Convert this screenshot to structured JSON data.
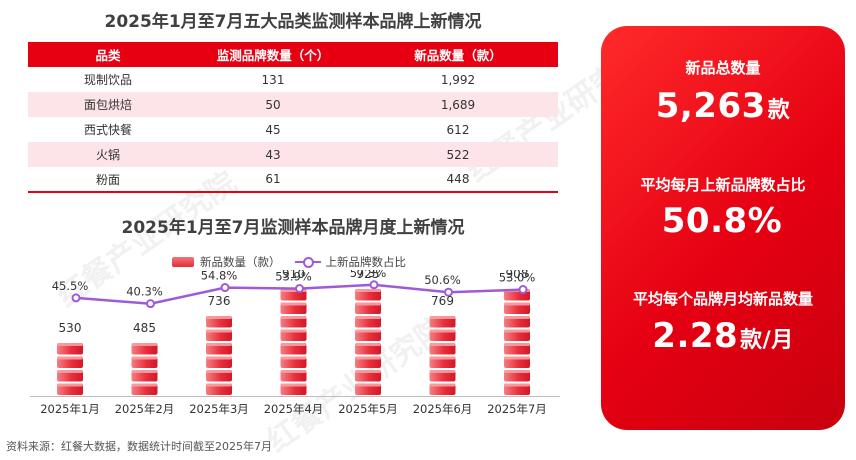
{
  "table_title": "2025年1月至7月五大品类监测样本品牌上新情况",
  "table": {
    "headers": [
      "品类",
      "监测品牌数量（个）",
      "新品数量（款）"
    ],
    "rows": [
      [
        "现制饮品",
        "131",
        "1,992"
      ],
      [
        "面包烘焙",
        "50",
        "1,689"
      ],
      [
        "西式快餐",
        "45",
        "612"
      ],
      [
        "火锅",
        "43",
        "522"
      ],
      [
        "粉面",
        "61",
        "448"
      ]
    ]
  },
  "chart_title": "2025年1月至7月监测样本品牌月度上新情况",
  "chart_data": {
    "type": "bar",
    "categories": [
      "2025年1月",
      "2025年2月",
      "2025年3月",
      "2025年4月",
      "2025年5月",
      "2025年6月",
      "2025年7月"
    ],
    "series": [
      {
        "name": "新品数量（款）",
        "type": "bar",
        "values": [
          530,
          485,
          736,
          910,
          925,
          769,
          908
        ],
        "value_labels": [
          "530",
          "485",
          "736",
          "910",
          "925",
          "769",
          "908"
        ],
        "color": "#e8303c"
      },
      {
        "name": "上新品牌数占比",
        "type": "line",
        "values": [
          45.5,
          40.3,
          54.8,
          53.9,
          57.3,
          50.6,
          53.0
        ],
        "value_labels": [
          "45.5%",
          "40.3%",
          "54.8%",
          "53.9%",
          "57.3%",
          "50.6%",
          "53.0%"
        ],
        "color": "#a05ad7"
      }
    ],
    "legend_position": "top"
  },
  "source": "资料来源：红餐大数据，数据统计时间截至2025年7月",
  "card": {
    "color": "#e60012",
    "stats": [
      {
        "label": "新品总数量",
        "value": "5,263",
        "unit": "款"
      },
      {
        "label": "平均每月上新品牌数占比",
        "value": "50.8%",
        "unit": ""
      },
      {
        "label": "平均每个品牌月均新品数量",
        "value": "2.28",
        "unit": "款/月"
      }
    ]
  },
  "watermark": "红餐产业研究院"
}
